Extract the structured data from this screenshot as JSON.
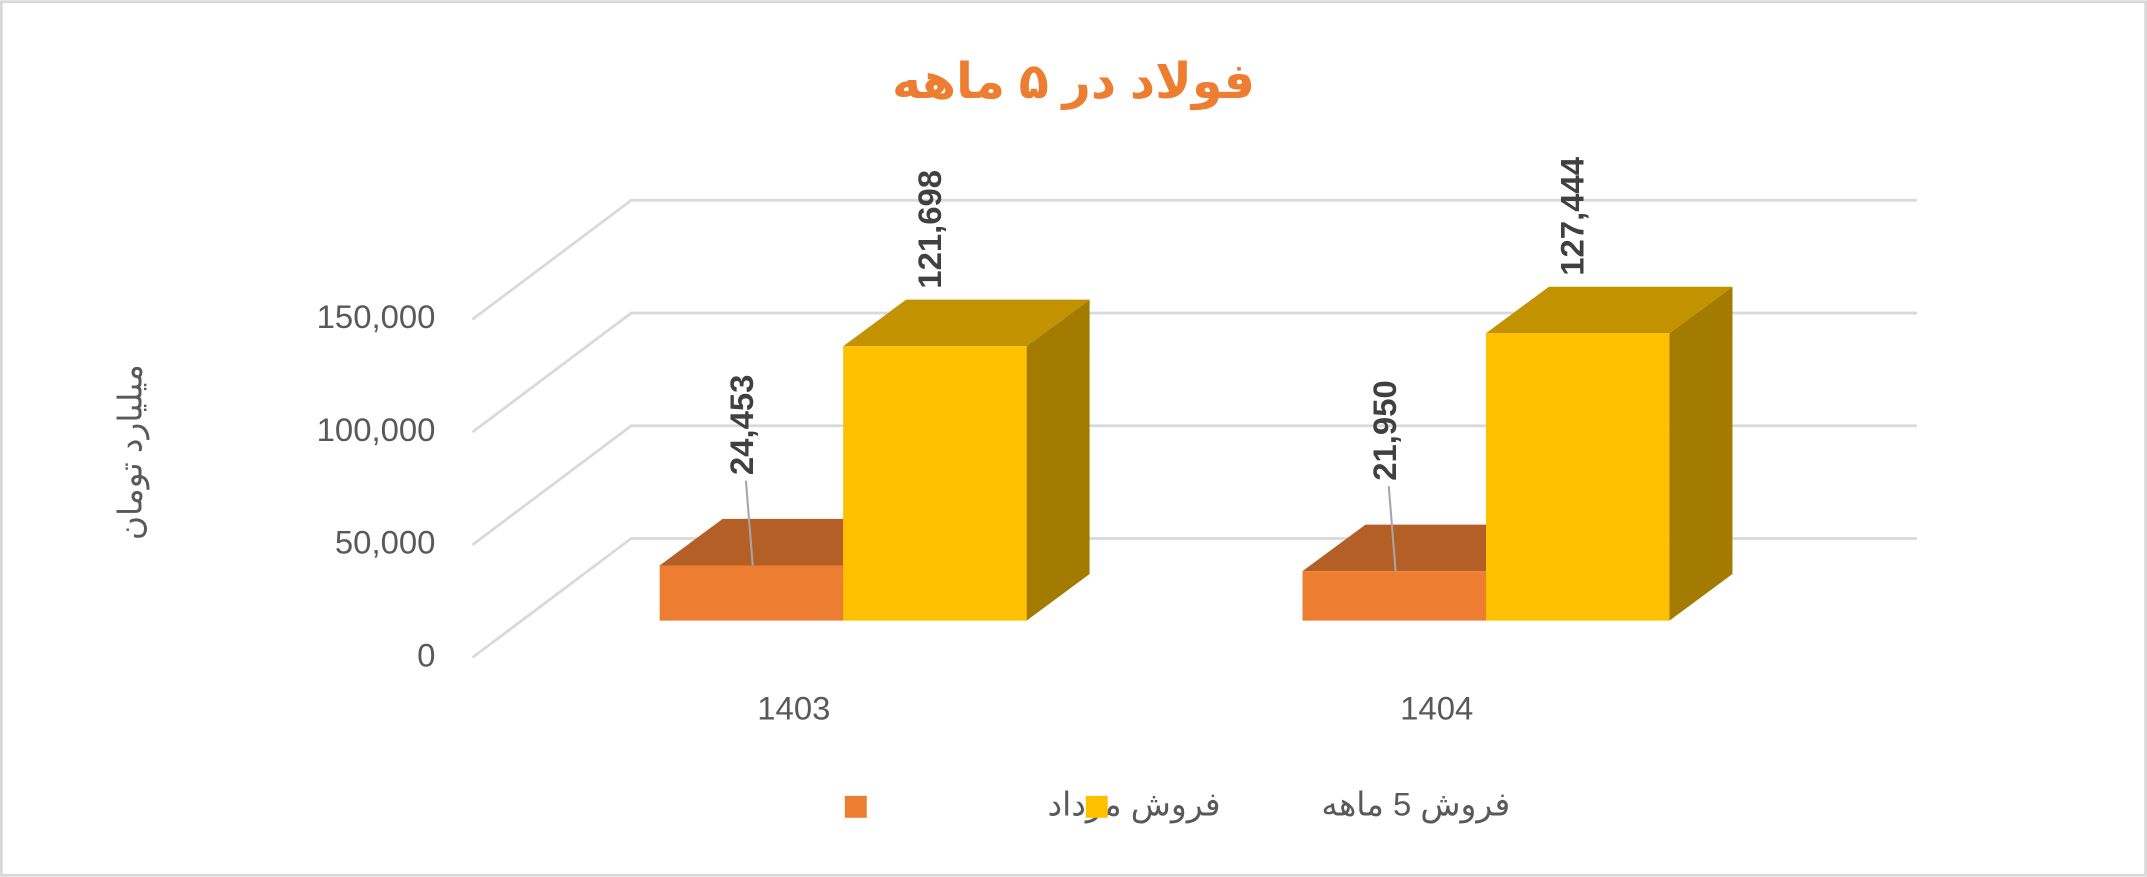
{
  "chart_data": {
    "type": "bar3d",
    "title": "فولاد در ۵ ماهه",
    "y_label": "میلیارد تومان",
    "categories": [
      "1403",
      "1404"
    ],
    "series": [
      {
        "name": "فروش مرداد",
        "color": "#ED7D31",
        "values": [
          24453,
          21950
        ],
        "value_labels": [
          "24,453",
          "21,950"
        ]
      },
      {
        "name": "فروش 5 ماهه",
        "color": "#FFC000",
        "values": [
          121698,
          127444
        ],
        "value_labels": [
          "121,698",
          "127,444"
        ]
      }
    ],
    "ylim": [
      0,
      150000
    ],
    "yticks": [
      0,
      {
        "value": 50000,
        "label": "50,000"
      },
      {
        "value": 100000,
        "label": "100,000"
      },
      {
        "value": 150000,
        "label": "150,000"
      }
    ],
    "grid": true,
    "legend": "bottom"
  }
}
